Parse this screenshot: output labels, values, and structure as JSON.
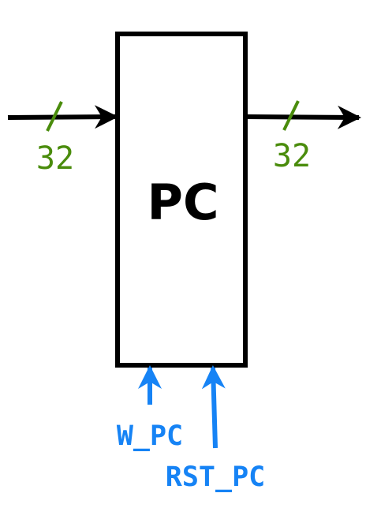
{
  "block": {
    "label": "PC"
  },
  "input_bus": {
    "width_label": "32"
  },
  "output_bus": {
    "width_label": "32"
  },
  "control_signals": [
    {
      "label": "W_PC"
    },
    {
      "label": "RST_PC"
    }
  ],
  "colors": {
    "line": "#000000",
    "bus_width": "#4a8c0c",
    "control": "#1683f5"
  }
}
